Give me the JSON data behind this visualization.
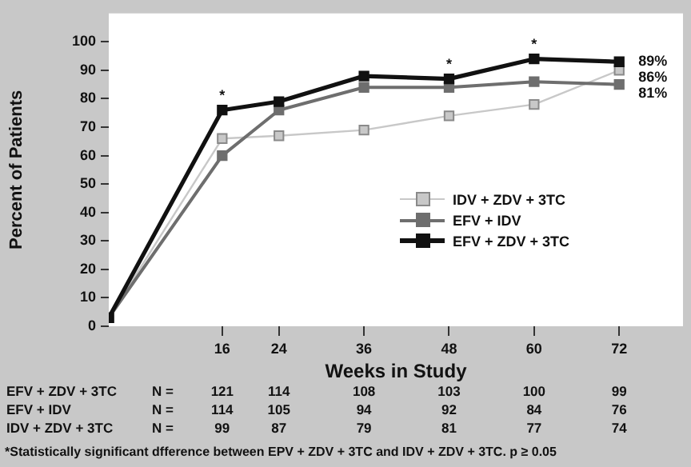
{
  "chart_data": {
    "type": "line",
    "xlabel": "Weeks in Study",
    "ylabel": "Percent of Patients",
    "x": [
      0,
      16,
      24,
      36,
      48,
      60,
      72
    ],
    "xlim": [
      0,
      81
    ],
    "xticks": [
      16,
      24,
      36,
      48,
      60,
      72
    ],
    "ylim": [
      0,
      110
    ],
    "yticks": [
      0,
      10,
      20,
      30,
      40,
      50,
      60,
      70,
      80,
      90,
      100
    ],
    "series": [
      {
        "name": "IDV + ZDV + 3TC",
        "color": "#c8c8c8",
        "values": [
          3,
          66,
          67,
          69,
          74,
          78,
          90
        ]
      },
      {
        "name": "EFV + IDV",
        "color": "#6e6e6e",
        "values": [
          3,
          60,
          76,
          84,
          84,
          86,
          85
        ]
      },
      {
        "name": "EFV + ZDV + 3TC",
        "color": "#111111",
        "values": [
          3,
          76,
          79,
          88,
          87,
          94,
          93
        ]
      }
    ],
    "marker": "square",
    "grid": false,
    "legend": "right",
    "annotations": [
      {
        "text": "*",
        "x": 16,
        "y": 76
      },
      {
        "text": "*",
        "x": 48,
        "y": 87
      },
      {
        "text": "*",
        "x": 60,
        "y": 94
      },
      {
        "text": "89%",
        "x": 72,
        "y": 93
      },
      {
        "text": "86%",
        "x": 72,
        "y": 90
      },
      {
        "text": "81%",
        "x": 72,
        "y": 85
      },
      "EFV + ZDV + 3TC",
      "N =",
      "121",
      "114",
      "108",
      "103",
      "100",
      "99",
      "EFV + IDV",
      "N =",
      "114",
      "105",
      "94",
      "92",
      "84",
      "76",
      "IDV + ZDV + 3TC",
      "N =",
      "99",
      "87",
      "79",
      "81",
      "77",
      "74",
      "*Statistically significant dfference between EPV + ZDV + 3TC and IDV + ZDV + 3TC. p ≥ 0.05"
    ]
  }
}
